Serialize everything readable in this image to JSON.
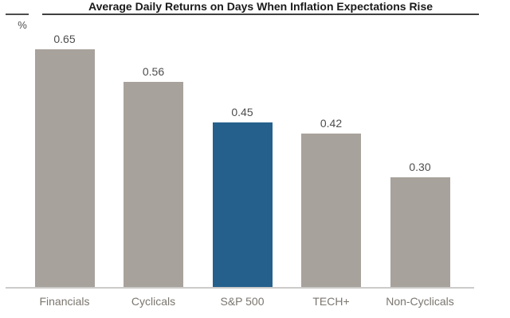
{
  "header": {
    "title": "Average Daily Returns on Days When Inflation Expectations Rise",
    "unit_label": "%"
  },
  "colors": {
    "bar_default": "#a8a29c",
    "bar_highlight": "#25608d",
    "title_text": "#1a1a1a",
    "value_label": "#4d4d4d",
    "category_label": "#7b766f",
    "baseline": "#cccbc9",
    "rule": "#3f3f3f"
  },
  "chart_data": {
    "type": "bar",
    "title": "Average Daily Returns on Days When Inflation Expectations Rise",
    "xlabel": "",
    "ylabel": "%",
    "categories": [
      "Financials",
      "Cyclicals",
      "S&P 500",
      "TECH+",
      "Non-Cyclicals"
    ],
    "values": [
      0.65,
      0.56,
      0.45,
      0.42,
      0.3
    ],
    "value_labels": [
      "0.65",
      "0.56",
      "0.45",
      "0.42",
      "0.30"
    ],
    "highlighted_category": "S&P 500",
    "ylim": [
      0,
      0.75
    ],
    "grid": false,
    "legend": false,
    "value_labels_position": "above-bars"
  }
}
